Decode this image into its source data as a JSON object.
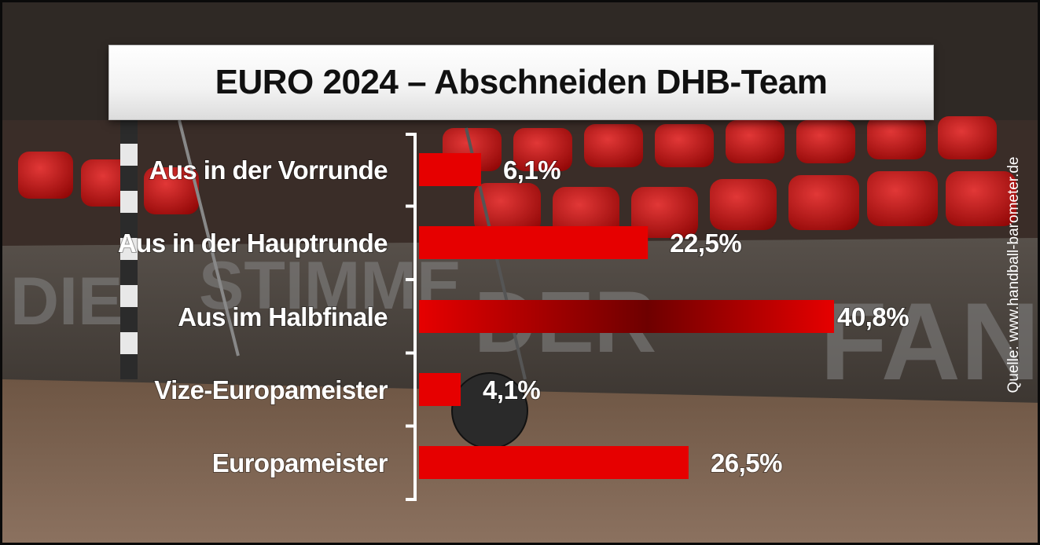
{
  "chart_data": {
    "type": "bar",
    "orientation": "horizontal",
    "title": "EURO 2024 – Abschneiden DHB-Team",
    "categories": [
      "Aus in der Vorrunde",
      "Aus in der Hauptrunde",
      "Aus im Halbfinale",
      "Vize-Europameister",
      "Europameister"
    ],
    "values": [
      6.1,
      22.5,
      40.8,
      4.1,
      26.5
    ],
    "value_labels": [
      "6,1%",
      "22,5%",
      "40,8%",
      "4,1%",
      "26,5%"
    ],
    "xlim": [
      0,
      40.8
    ],
    "grid": false,
    "legend": "none",
    "bar_color": "#e60000",
    "bar_color_dark": "#6e0000",
    "source": "Quelle: www.handball-barometer.de"
  },
  "backdrop_text": [
    "DIE",
    "STIMME",
    "DER",
    "FANS"
  ]
}
